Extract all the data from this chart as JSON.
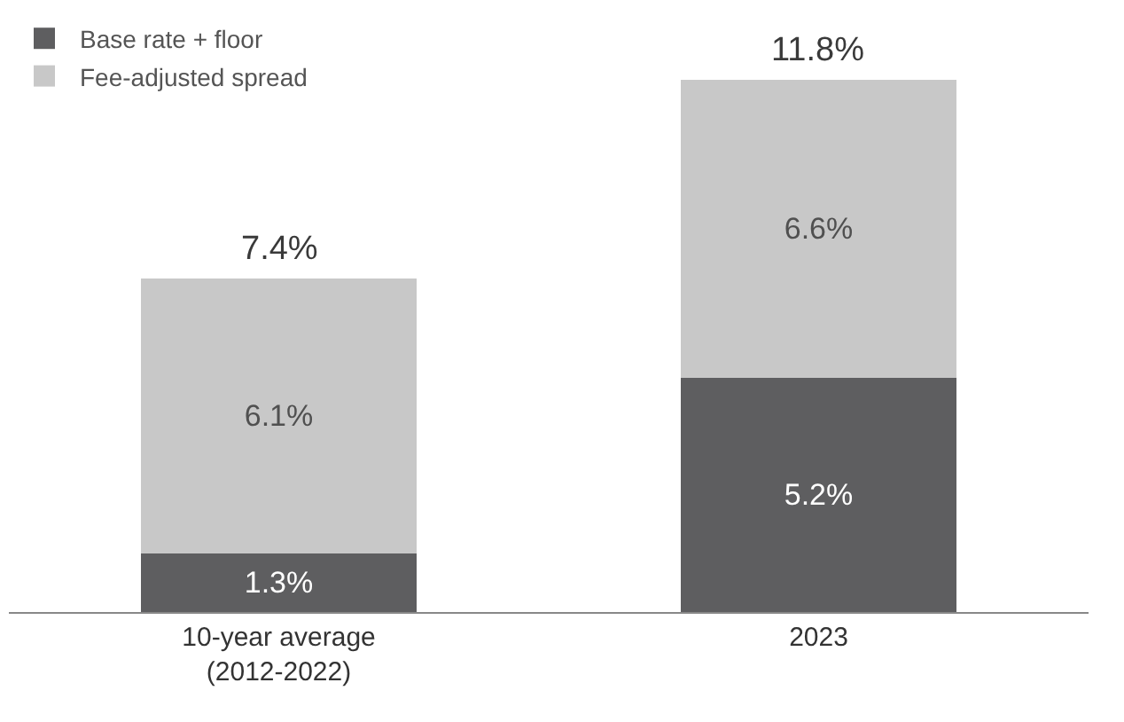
{
  "chart_data": {
    "type": "bar",
    "stacked": true,
    "categories": [
      "10-year average\n(2012-2022)",
      "2023"
    ],
    "series": [
      {
        "name": "Base rate + floor",
        "color": "#5e5e60",
        "values": [
          1.3,
          5.2
        ],
        "value_labels": [
          "1.3%",
          "5.2%"
        ]
      },
      {
        "name": "Fee-adjusted spread",
        "color": "#c8c8c8",
        "values": [
          6.1,
          6.6
        ],
        "value_labels": [
          "6.1%",
          "6.6%"
        ]
      }
    ],
    "totals": [
      "7.4%",
      "11.8%"
    ],
    "legend": "top left"
  }
}
